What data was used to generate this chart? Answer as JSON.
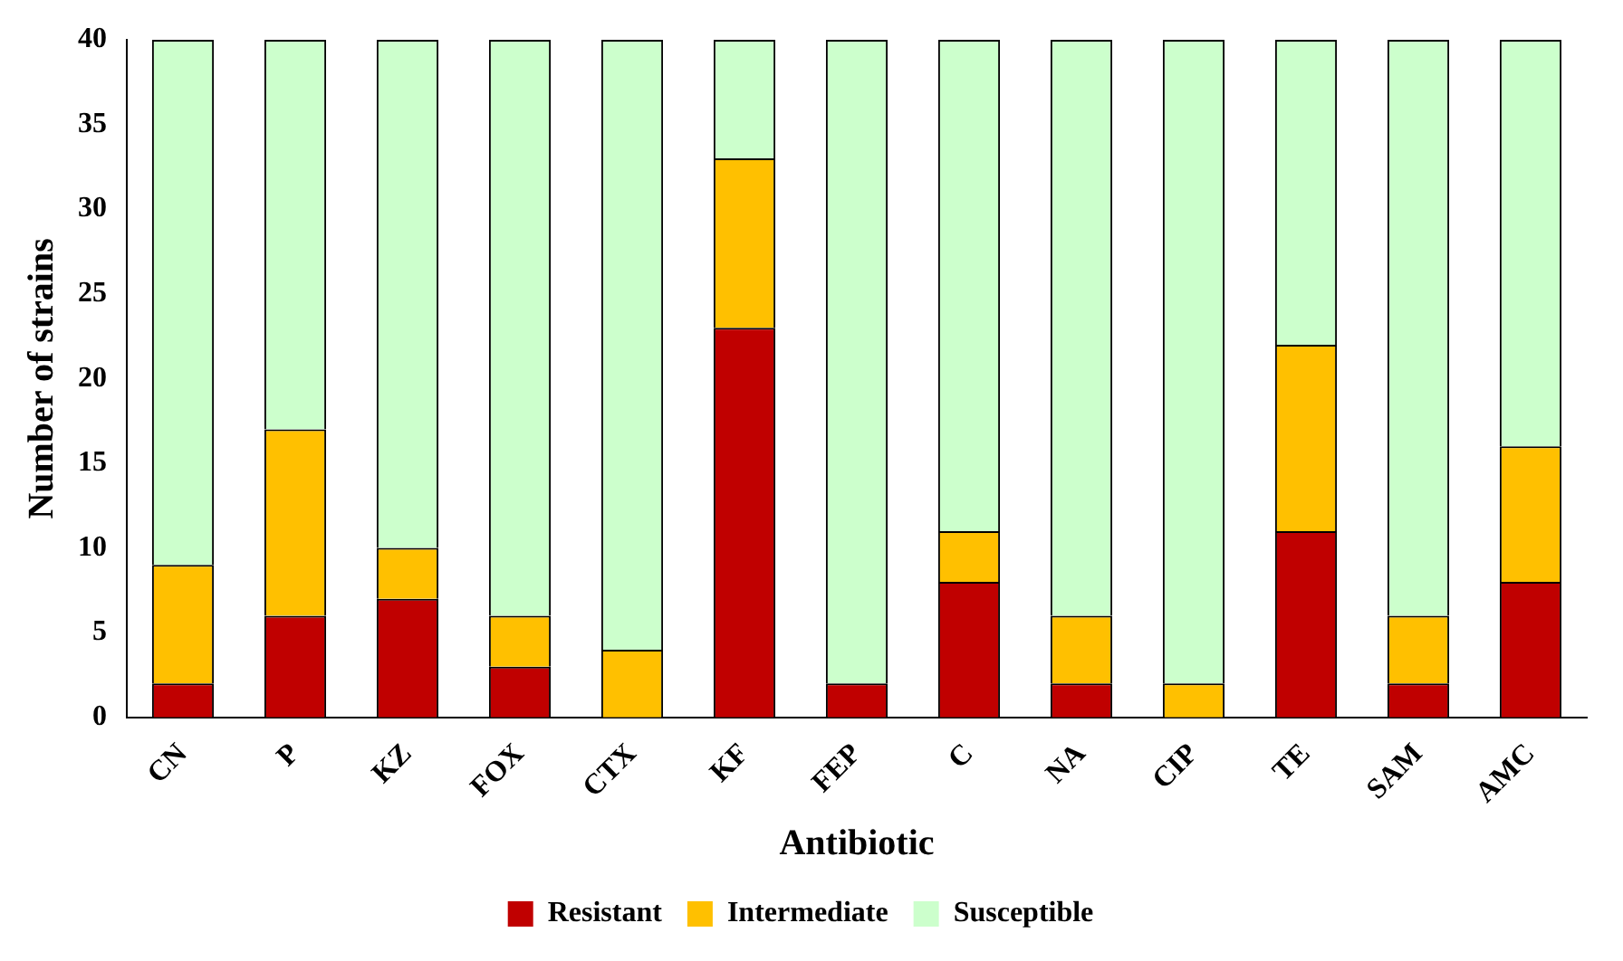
{
  "chart_data": {
    "type": "bar",
    "stacked": true,
    "xlabel": "Antibiotic",
    "ylabel": "Number of strains",
    "categories": [
      "CN",
      "P",
      "KZ",
      "FOX",
      "CTX",
      "KF",
      "FEP",
      "C",
      "NA",
      "CIP",
      "TE",
      "SAM",
      "AMC"
    ],
    "series": [
      {
        "name": "Resistant",
        "color": "#c00000",
        "values": [
          2,
          6,
          7,
          3,
          0,
          23,
          2,
          8,
          2,
          0,
          11,
          2,
          8
        ]
      },
      {
        "name": "Intermediate",
        "color": "#ffc000",
        "values": [
          7,
          11,
          3,
          3,
          4,
          10,
          0,
          3,
          4,
          2,
          11,
          4,
          8
        ]
      },
      {
        "name": "Susceptible",
        "color": "#ccffcc",
        "values": [
          31,
          23,
          30,
          34,
          36,
          7,
          38,
          29,
          34,
          38,
          18,
          34,
          24
        ]
      }
    ],
    "ylim": [
      0,
      40
    ],
    "yticks": [
      0,
      5,
      10,
      15,
      20,
      25,
      30,
      35,
      40
    ],
    "grid": false,
    "legend": "bottom"
  }
}
